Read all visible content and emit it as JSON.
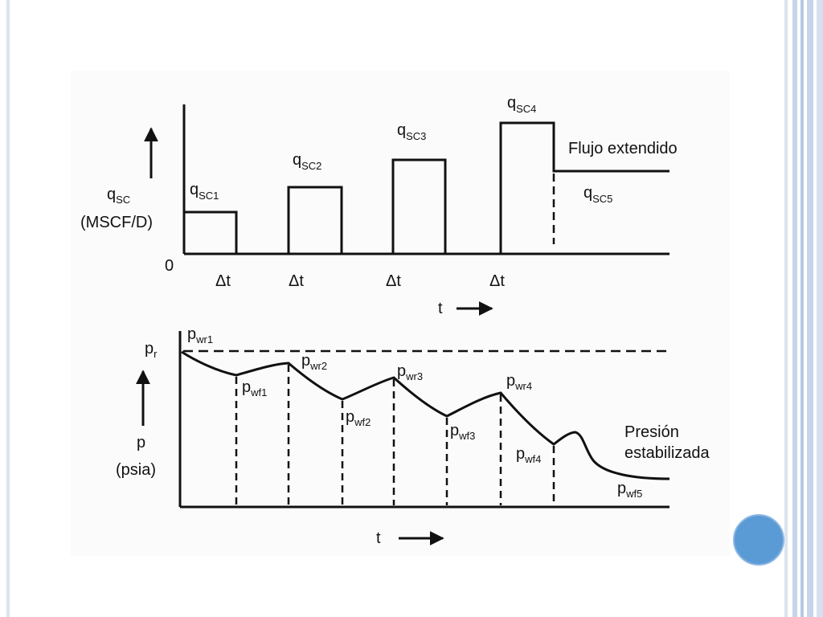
{
  "colors": {
    "accent_dot": "#5b9bd5",
    "border_stripes": "#c5d5ea",
    "line": "#111111"
  },
  "top_chart": {
    "y_label_q": "q",
    "y_label_q_sub": "SC",
    "y_label_unit": "(MSCF/D)",
    "origin": "0",
    "rate_labels": [
      {
        "q": "q",
        "sub": "SC1"
      },
      {
        "q": "q",
        "sub": "SC2"
      },
      {
        "q": "q",
        "sub": "SC3"
      },
      {
        "q": "q",
        "sub": "SC4"
      },
      {
        "q": "q",
        "sub": "SC5"
      }
    ],
    "delta_labels": [
      "Δt",
      "Δt",
      "Δt",
      "Δt"
    ],
    "extended_flow": "Flujo extendido",
    "x_label": "t"
  },
  "bottom_chart": {
    "pr_label": "p",
    "pr_sub": "r",
    "y_label_p": "p",
    "y_label_unit": "(psia)",
    "pwr_labels": [
      {
        "p": "p",
        "sub": "wr1"
      },
      {
        "p": "p",
        "sub": "wr2"
      },
      {
        "p": "p",
        "sub": "wr3"
      },
      {
        "p": "p",
        "sub": "wr4"
      }
    ],
    "pwf_labels": [
      {
        "p": "p",
        "sub": "wf1"
      },
      {
        "p": "p",
        "sub": "wf2"
      },
      {
        "p": "p",
        "sub": "wf3"
      },
      {
        "p": "p",
        "sub": "wf4"
      },
      {
        "p": "p",
        "sub": "wf5"
      }
    ],
    "stabilized_line1": "Presión",
    "stabilized_line2": "estabilizada",
    "x_label": "t"
  }
}
